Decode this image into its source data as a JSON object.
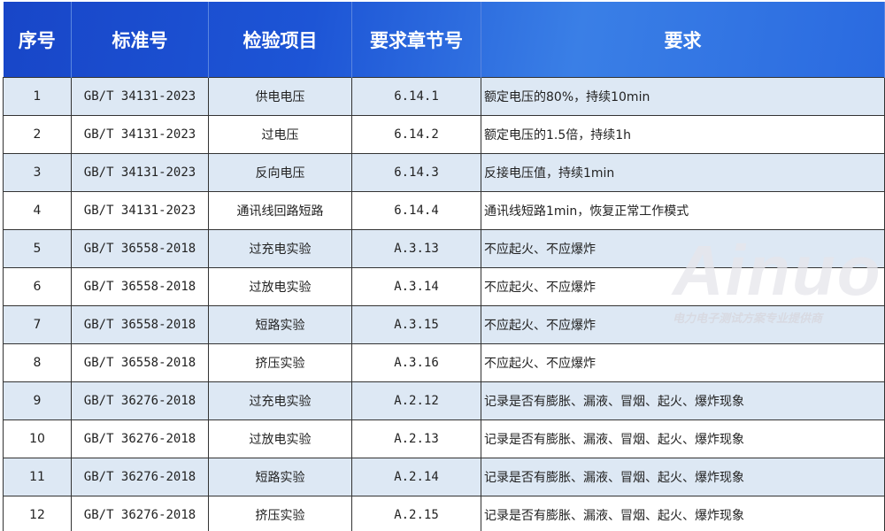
{
  "headers": [
    "序号",
    "标准号",
    "检验项目",
    "要求章节号",
    "要求"
  ],
  "rows": [
    {
      "no": "1",
      "std": "GB/T 34131-2023",
      "item": "供电电压",
      "clause": "6.14.1",
      "req": "额定电压的80%，持续10min"
    },
    {
      "no": "2",
      "std": "GB/T 34131-2023",
      "item": "过电压",
      "clause": "6.14.2",
      "req": "额定电压的1.5倍，持续1h"
    },
    {
      "no": "3",
      "std": "GB/T 34131-2023",
      "item": "反向电压",
      "clause": "6.14.3",
      "req": "反接电压值，持续1min"
    },
    {
      "no": "4",
      "std": "GB/T 34131-2023",
      "item": "通讯线回路短路",
      "clause": "6.14.4",
      "req": "通讯线短路1min，恢复正常工作模式"
    },
    {
      "no": "5",
      "std": "GB/T 36558-2018",
      "item": "过充电实验",
      "clause": "A.3.13",
      "req": "不应起火、不应爆炸"
    },
    {
      "no": "6",
      "std": "GB/T 36558-2018",
      "item": "过放电实验",
      "clause": "A.3.14",
      "req": "不应起火、不应爆炸"
    },
    {
      "no": "7",
      "std": "GB/T 36558-2018",
      "item": "短路实验",
      "clause": "A.3.15",
      "req": "不应起火、不应爆炸"
    },
    {
      "no": "8",
      "std": "GB/T 36558-2018",
      "item": "挤压实验",
      "clause": "A.3.16",
      "req": "不应起火、不应爆炸"
    },
    {
      "no": "9",
      "std": "GB/T 36276-2018",
      "item": "过充电实验",
      "clause": "A.2.12",
      "req": "记录是否有膨胀、漏液、冒烟、起火、爆炸现象"
    },
    {
      "no": "10",
      "std": "GB/T 36276-2018",
      "item": "过放电实验",
      "clause": "A.2.13",
      "req": "记录是否有膨胀、漏液、冒烟、起火、爆炸现象"
    },
    {
      "no": "11",
      "std": "GB/T 36276-2018",
      "item": "短路实验",
      "clause": "A.2.14",
      "req": "记录是否有膨胀、漏液、冒烟、起火、爆炸现象"
    },
    {
      "no": "12",
      "std": "GB/T 36276-2018",
      "item": "挤压实验",
      "clause": "A.2.15",
      "req": "记录是否有膨胀、漏液、冒烟、起火、爆炸现象"
    }
  ],
  "watermark": {
    "brand": "Ainuo",
    "tagline": "电力电子测试方案专业提供商"
  },
  "colors": {
    "header": "#1d55d6",
    "row_alt": "#dde8f4"
  }
}
